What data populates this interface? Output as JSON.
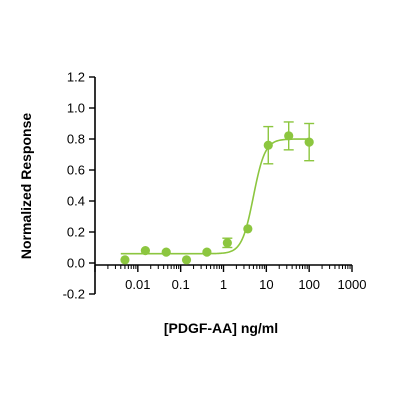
{
  "chart_data": {
    "type": "scatter",
    "title": "",
    "xlabel": "[PDGF-AA] ng/ml",
    "ylabel": "Normalized Response",
    "x_scale": "log",
    "xlim": [
      0.001,
      1000
    ],
    "ylim": [
      -0.2,
      1.2
    ],
    "x_ticks": [
      "0.01",
      "0.1",
      "1",
      "10",
      "100",
      "1000"
    ],
    "y_ticks": [
      "-0.2",
      "0.0",
      "0.2",
      "0.4",
      "0.6",
      "0.8",
      "1.0",
      "1.2"
    ],
    "grid": false,
    "legend": "none",
    "series": [
      {
        "points": [
          {
            "x": 0.005,
            "y": 0.02,
            "err": 0
          },
          {
            "x": 0.015,
            "y": 0.08,
            "err": 0
          },
          {
            "x": 0.046,
            "y": 0.07,
            "err": 0
          },
          {
            "x": 0.137,
            "y": 0.02,
            "err": 0
          },
          {
            "x": 0.41,
            "y": 0.07,
            "err": 0
          },
          {
            "x": 1.23,
            "y": 0.13,
            "err": 0.03
          },
          {
            "x": 3.7,
            "y": 0.22,
            "err": 0
          },
          {
            "x": 11.1,
            "y": 0.76,
            "err": 0.12
          },
          {
            "x": 33.3,
            "y": 0.82,
            "err": 0.09
          },
          {
            "x": 100,
            "y": 0.78,
            "err": 0.12
          }
        ],
        "fit": {
          "bottom": 0.06,
          "top": 0.8,
          "ec50": 5.0,
          "hill": 3.2,
          "xrange": [
            0.004,
            110
          ]
        },
        "color": "#8cc63f"
      }
    ]
  }
}
